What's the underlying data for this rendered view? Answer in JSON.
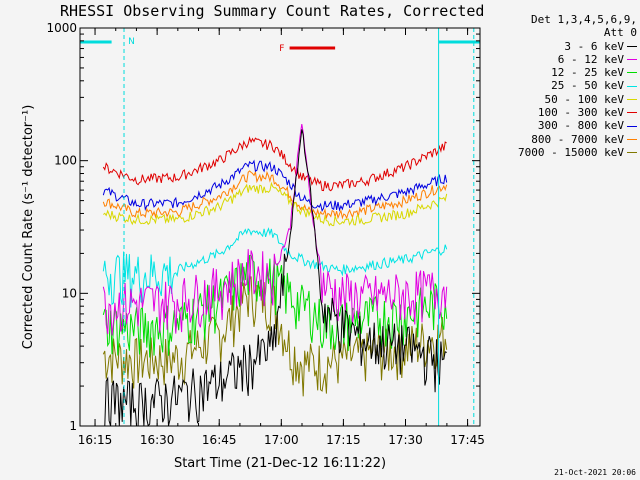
{
  "title": "RHESSI Observing Summary Count Rates, Corrected",
  "timestamp": "21-Oct-2021 20:06",
  "legend_header": [
    "Det 1,3,4,5,6,9,",
    "Att 0"
  ],
  "flags": [
    {
      "label": "N",
      "color": "#00dcdc",
      "start": 21.9,
      "end": 22.5
    },
    {
      "label": "F",
      "color": "#e00000",
      "start": 1.02,
      "end": 1.16
    }
  ],
  "night_markers": [
    {
      "start": 22.53,
      "end": 23.28
    },
    {
      "start": 0.23,
      "end": 0.55
    }
  ],
  "chart_data": {
    "type": "line",
    "title": "RHESSI Observing Summary Count Rates, Corrected",
    "xlabel": "Start Time (21-Dec-12 16:11:22)",
    "ylabel": "Corrected Count Rate (s⁻¹ detector⁻¹)",
    "xscale": "time",
    "yscale": "log",
    "xlim": [
      "16:11:22",
      "17:48:00"
    ],
    "ylim": [
      1,
      1000
    ],
    "xticks": [
      "16:15",
      "16:30",
      "16:45",
      "17:00",
      "17:15",
      "17:30",
      "17:45"
    ],
    "yticks": [
      "1",
      "10",
      "100",
      "1000"
    ],
    "grid": false,
    "legend_position": "right",
    "x": [
      "16:17",
      "16:25",
      "16:35",
      "16:45",
      "16:52",
      "16:58",
      "17:02",
      "17:05",
      "17:07",
      "17:10",
      "17:14",
      "17:20",
      "17:30",
      "17:40"
    ],
    "series": [
      {
        "name": "3 - 6 keV",
        "color": "#000000",
        "values": [
          1.6,
          1.5,
          1.7,
          2.2,
          3.0,
          4.0,
          25,
          180,
          60,
          8,
          6,
          4.5,
          4,
          3
        ]
      },
      {
        "name": "6 - 12 keV",
        "color": "#e000e0",
        "values": [
          8.5,
          8.5,
          9,
          11,
          15,
          14,
          30,
          200,
          50,
          12,
          10,
          9.5,
          10,
          11
        ]
      },
      {
        "name": "12 - 25 keV",
        "color": "#00dc00",
        "values": [
          6,
          5.5,
          6,
          9,
          14,
          13,
          10,
          8,
          8,
          6,
          6,
          6.5,
          7,
          9
        ]
      },
      {
        "name": "25 - 50 keV",
        "color": "#00e4e4",
        "values": [
          15,
          14,
          15,
          20,
          30,
          28,
          20,
          18,
          17,
          16,
          15,
          16,
          18,
          22
        ]
      },
      {
        "name": "50 - 100 keV",
        "color": "#d8d800",
        "values": [
          40,
          36,
          36,
          45,
          62,
          62,
          50,
          42,
          40,
          36,
          35,
          36,
          40,
          52
        ]
      },
      {
        "name": "100 - 300 keV",
        "color": "#e00000",
        "values": [
          90,
          72,
          75,
          100,
          140,
          130,
          95,
          75,
          70,
          65,
          65,
          70,
          90,
          130
        ]
      },
      {
        "name": "300 - 800 keV",
        "color": "#0000e0",
        "values": [
          60,
          47,
          48,
          65,
          92,
          90,
          68,
          52,
          48,
          46,
          46,
          49,
          58,
          75
        ]
      },
      {
        "name": "800 - 7000 keV",
        "color": "#ff8000",
        "values": [
          50,
          40,
          41,
          54,
          77,
          75,
          56,
          45,
          41,
          40,
          40,
          42,
          50,
          66
        ]
      },
      {
        "name": "7000 - 15000 keV",
        "color": "#807800",
        "values": [
          3.5,
          3.2,
          3.3,
          5,
          10,
          9,
          4,
          3,
          3,
          3,
          3.2,
          3.5,
          4,
          5
        ]
      }
    ]
  }
}
